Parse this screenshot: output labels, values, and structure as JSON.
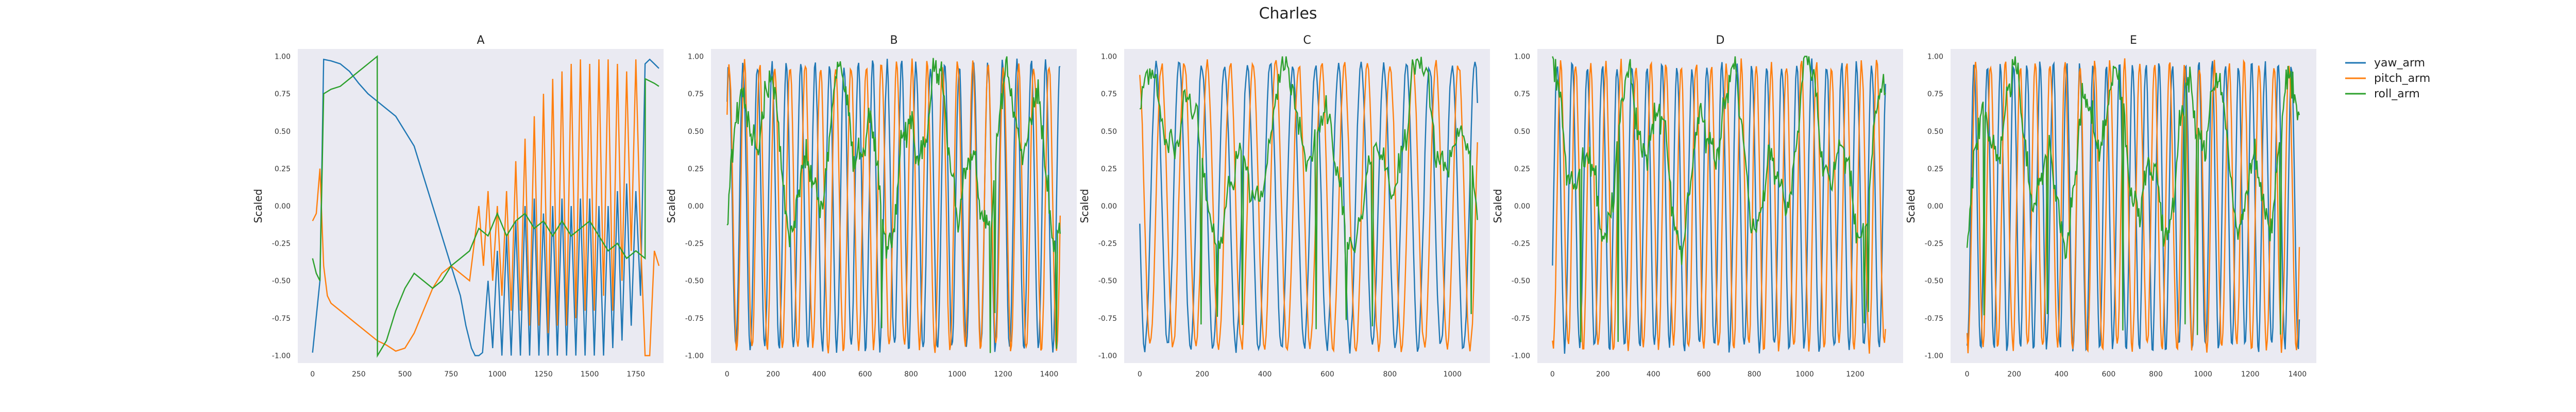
{
  "figure": {
    "title": "Charles"
  },
  "chart_data": {
    "type": "line",
    "title": "Charles",
    "ylabel": "Scaled",
    "ylim": [
      -1.05,
      1.05
    ],
    "yticks": [
      -1.0,
      -0.75,
      -0.5,
      -0.25,
      0.0,
      0.25,
      0.5,
      0.75,
      1.0
    ],
    "grid": false,
    "legend": {
      "placement": "outside-right",
      "entries": [
        "yaw_arm",
        "pitch_arm",
        "roll_arm"
      ]
    },
    "colors": {
      "yaw_arm": "#1f77b4",
      "pitch_arm": "#ff7f0e",
      "roll_arm": "#2ca02c",
      "panel_bg": "#eaeaf2"
    },
    "panels": [
      {
        "title": "A",
        "xlim": [
          -80,
          1900
        ],
        "xticks": [
          0,
          250,
          500,
          750,
          1000,
          1250,
          1500,
          1750
        ],
        "series": [
          {
            "name": "yaw_arm",
            "x": [
              0,
              40,
              60,
              100,
              150,
              200,
              250,
              300,
              350,
              400,
              450,
              500,
              550,
              600,
              650,
              700,
              750,
              800,
              830,
              860,
              880,
              900,
              920,
              950,
              975,
              1000,
              1025,
              1050,
              1075,
              1100,
              1125,
              1150,
              1175,
              1200,
              1225,
              1250,
              1275,
              1300,
              1325,
              1350,
              1375,
              1400,
              1425,
              1450,
              1475,
              1500,
              1525,
              1550,
              1575,
              1600,
              1625,
              1650,
              1675,
              1700,
              1725,
              1750,
              1775,
              1800,
              1825,
              1850,
              1875
            ],
            "values": [
              -0.98,
              -0.5,
              0.98,
              0.97,
              0.95,
              0.9,
              0.82,
              0.75,
              0.7,
              0.65,
              0.6,
              0.5,
              0.4,
              0.2,
              0.0,
              -0.2,
              -0.4,
              -0.6,
              -0.8,
              -0.95,
              -1.0,
              -1.0,
              -0.98,
              -0.5,
              -0.95,
              -0.3,
              -1.0,
              -0.2,
              -1.0,
              -0.1,
              -1.0,
              0.0,
              -1.0,
              0.05,
              -1.0,
              -0.05,
              -1.0,
              0.0,
              -1.0,
              0.05,
              -1.0,
              0.0,
              -1.0,
              0.05,
              -1.0,
              0.05,
              -1.0,
              0.0,
              -1.0,
              0.0,
              -0.95,
              0.1,
              -0.9,
              0.15,
              -0.8,
              0.1,
              -0.6,
              0.95,
              0.98,
              0.95,
              0.92
            ]
          },
          {
            "name": "pitch_arm",
            "x": [
              0,
              20,
              40,
              60,
              80,
              100,
              150,
              200,
              250,
              300,
              350,
              400,
              450,
              500,
              550,
              600,
              650,
              700,
              750,
              800,
              850,
              900,
              925,
              950,
              975,
              1000,
              1025,
              1050,
              1075,
              1100,
              1125,
              1150,
              1175,
              1200,
              1225,
              1250,
              1275,
              1300,
              1325,
              1350,
              1375,
              1400,
              1425,
              1450,
              1475,
              1500,
              1525,
              1550,
              1575,
              1600,
              1625,
              1650,
              1675,
              1700,
              1725,
              1750,
              1775,
              1800,
              1825,
              1850,
              1875
            ],
            "values": [
              -0.1,
              -0.05,
              0.25,
              -0.4,
              -0.6,
              -0.65,
              -0.7,
              -0.75,
              -0.8,
              -0.85,
              -0.9,
              -0.93,
              -0.97,
              -0.95,
              -0.85,
              -0.7,
              -0.55,
              -0.45,
              -0.4,
              -0.45,
              -0.5,
              0.0,
              -0.4,
              0.1,
              -0.5,
              0.0,
              -0.6,
              0.1,
              -0.7,
              0.3,
              -0.7,
              0.45,
              -0.8,
              0.6,
              -0.8,
              0.75,
              -0.85,
              0.85,
              -0.8,
              0.9,
              -0.8,
              0.95,
              -0.75,
              0.98,
              -0.7,
              0.95,
              -0.7,
              0.98,
              -0.6,
              0.98,
              -0.7,
              0.95,
              -0.5,
              0.9,
              -0.3,
              0.98,
              -0.2,
              -1.0,
              -1.0,
              -0.3,
              -0.4
            ]
          },
          {
            "name": "roll_arm",
            "x": [
              0,
              20,
              40,
              60,
              100,
              150,
              200,
              250,
              300,
              350,
              351,
              400,
              450,
              500,
              550,
              600,
              650,
              700,
              750,
              800,
              850,
              900,
              950,
              1000,
              1050,
              1100,
              1150,
              1200,
              1250,
              1300,
              1350,
              1400,
              1450,
              1500,
              1550,
              1600,
              1650,
              1700,
              1750,
              1800,
              1801,
              1850,
              1875
            ],
            "values": [
              -0.35,
              -0.45,
              -0.5,
              0.75,
              0.78,
              0.8,
              0.85,
              0.9,
              0.95,
              1.0,
              -1.0,
              -0.9,
              -0.7,
              -0.55,
              -0.45,
              -0.5,
              -0.55,
              -0.5,
              -0.4,
              -0.35,
              -0.3,
              -0.15,
              -0.2,
              -0.05,
              -0.2,
              -0.1,
              -0.05,
              -0.15,
              -0.1,
              -0.2,
              -0.1,
              -0.2,
              -0.15,
              -0.1,
              -0.2,
              -0.3,
              -0.25,
              -0.35,
              -0.3,
              -0.35,
              0.85,
              0.82,
              0.8
            ]
          }
        ]
      },
      {
        "title": "B",
        "xlim": [
          -70,
          1520
        ],
        "xticks": [
          0,
          200,
          400,
          600,
          800,
          1000,
          1200,
          1400
        ],
        "gen": {
          "x_max": 1450,
          "seeds": [
            2,
            7,
            13
          ]
        }
      },
      {
        "title": "C",
        "xlim": [
          -50,
          1120
        ],
        "xticks": [
          0,
          200,
          400,
          600,
          800,
          1000
        ],
        "gen": {
          "x_max": 1080,
          "seeds": [
            5,
            11,
            17
          ]
        }
      },
      {
        "title": "D",
        "xlim": [
          -60,
          1390
        ],
        "xticks": [
          0,
          200,
          400,
          600,
          800,
          1000,
          1200
        ],
        "gen": {
          "x_max": 1320,
          "seeds": [
            3,
            9,
            21
          ]
        }
      },
      {
        "title": "E",
        "xlim": [
          -70,
          1480
        ],
        "xticks": [
          0,
          200,
          400,
          600,
          800,
          1000,
          1200,
          1400
        ],
        "gen": {
          "x_max": 1410,
          "seeds": [
            4,
            14,
            23
          ]
        }
      }
    ]
  }
}
